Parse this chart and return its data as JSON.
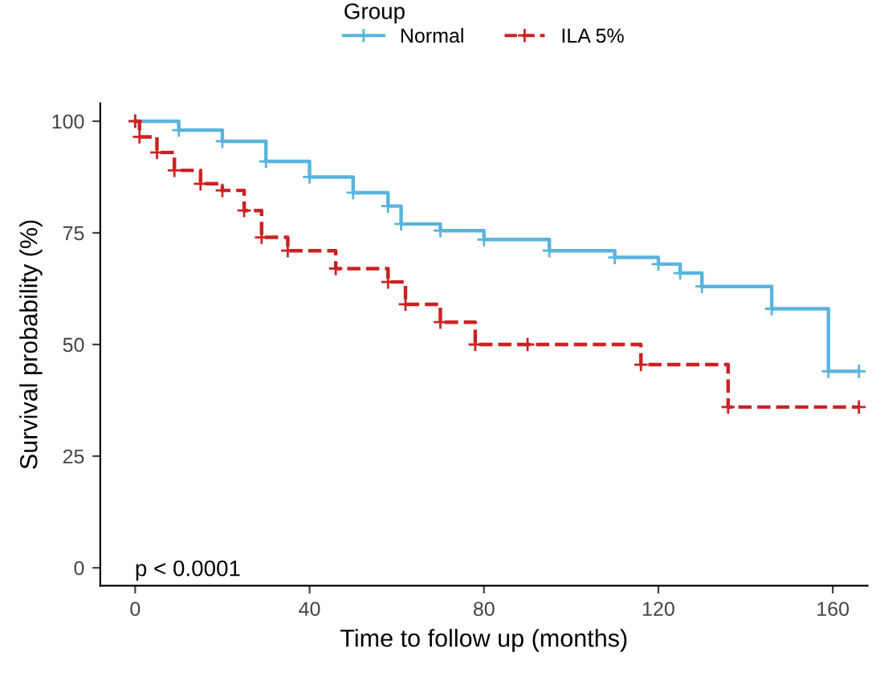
{
  "chart_data": {
    "type": "step",
    "xlabel": "Time to follow up (months)",
    "ylabel": "Survival probability (%)",
    "legend_title": "Group",
    "xlim": [
      -8,
      168
    ],
    "ylim": [
      -4,
      104
    ],
    "xticks": [
      0,
      40,
      80,
      120,
      160
    ],
    "yticks": [
      0,
      25,
      50,
      75,
      100
    ],
    "grid": false,
    "legend": "top",
    "marker": "cross",
    "annotations": [
      "p < 0.0001"
    ],
    "series": [
      {
        "name": "Normal",
        "color": "#5ab4dc",
        "line_style": "solid",
        "x": [
          0,
          10,
          20,
          30,
          40,
          50,
          58,
          61,
          70,
          80,
          95,
          110,
          120,
          125,
          130,
          146,
          159,
          166
        ],
        "values": [
          100,
          98,
          95.5,
          91,
          87.5,
          84,
          81,
          77,
          75.5,
          73.5,
          71,
          69.5,
          68,
          66,
          63,
          58,
          44,
          44
        ]
      },
      {
        "name": "ILA 5%",
        "color": "#cc2222",
        "line_style": "dashed",
        "x": [
          0,
          1,
          5,
          9,
          15,
          20,
          25,
          29,
          35,
          46,
          58,
          62,
          70,
          78,
          90,
          116,
          136,
          166
        ],
        "values": [
          100,
          96.5,
          93,
          89,
          86,
          84.5,
          80,
          74,
          71,
          67,
          64,
          59,
          55,
          50,
          50,
          45.5,
          36,
          36
        ]
      }
    ]
  }
}
